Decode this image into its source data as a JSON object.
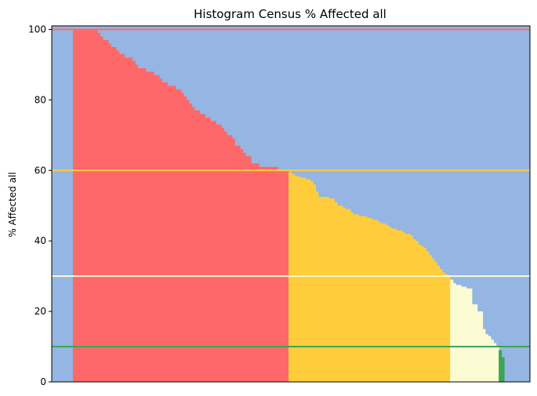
{
  "chart_data": {
    "type": "bar",
    "title": "Histogram Census % Affected all",
    "xlabel": "",
    "ylabel": "% Affected all",
    "ylim": [
      0,
      101
    ],
    "yticks": [
      0,
      20,
      40,
      60,
      80,
      100
    ],
    "grid": false,
    "background_color": "#95b5e2",
    "thresholds": [
      {
        "value": 100,
        "color": "#ff6b6b"
      },
      {
        "value": 60,
        "color": "#ffcd3c"
      },
      {
        "value": 30,
        "color": "#fbfbd3"
      },
      {
        "value": 10,
        "color": "#3da556"
      }
    ],
    "bands": [
      {
        "min": 60,
        "color": "#ff6868"
      },
      {
        "min": 30,
        "color": "#ffcd3c"
      },
      {
        "min": 10,
        "color": "#fbfbd3"
      },
      {
        "min": 0,
        "color": "#3da556"
      }
    ],
    "values": [
      100,
      100,
      100,
      100,
      100,
      100,
      100,
      100,
      100,
      99,
      98,
      97,
      97,
      96,
      95,
      95,
      94,
      93,
      93,
      92,
      92,
      92,
      91,
      90,
      89,
      89,
      89,
      88,
      88,
      88,
      87,
      87,
      86,
      85,
      85,
      84,
      84,
      84,
      83,
      83,
      82,
      81,
      80,
      79,
      78,
      77,
      77,
      76,
      76,
      75,
      75,
      74,
      74,
      73,
      73,
      72,
      71,
      70,
      70,
      69,
      67,
      67,
      66,
      65,
      64,
      64,
      62,
      62,
      62,
      61,
      61,
      61,
      61,
      61,
      61,
      61,
      60,
      60,
      60,
      60,
      59.5,
      59,
      58.5,
      58.3,
      58,
      58,
      57.5,
      57.5,
      57,
      56,
      54,
      52.5,
      52.5,
      52.5,
      52.5,
      52,
      52,
      51,
      50,
      50,
      49.5,
      49,
      49,
      48,
      47.5,
      47.5,
      47,
      47,
      47,
      46.5,
      46.5,
      46,
      46,
      45.5,
      45,
      45,
      44.5,
      44,
      43.5,
      43.5,
      43,
      43,
      42.5,
      42,
      42,
      41.5,
      40.5,
      40,
      39,
      38.5,
      38,
      37,
      36,
      35,
      34,
      33,
      32,
      31,
      30.5,
      30,
      29,
      28,
      27.5,
      27.5,
      27,
      27,
      26.5,
      26.5,
      22,
      22,
      20,
      20,
      15,
      13.5,
      13,
      12,
      11,
      10,
      9,
      7
    ]
  }
}
